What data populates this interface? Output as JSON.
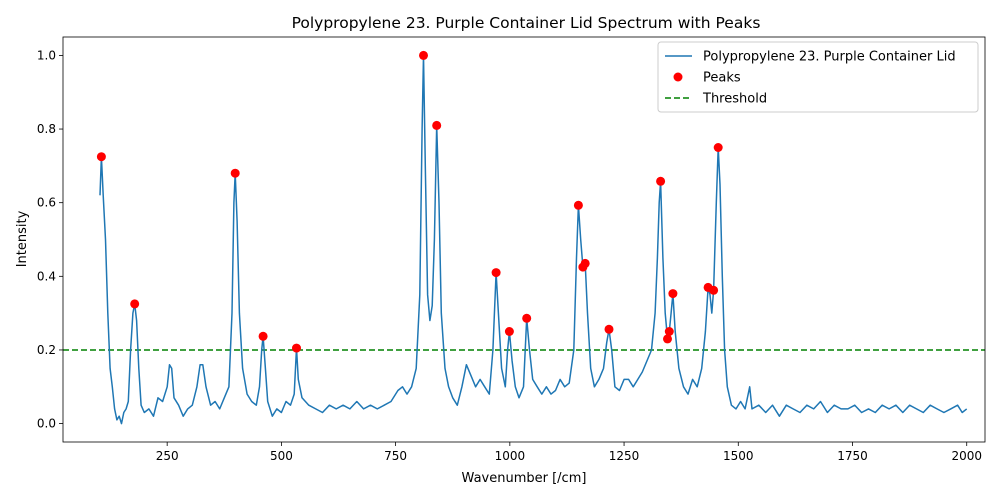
{
  "chart_data": {
    "type": "line",
    "title": "Polypropylene 23. Purple Container Lid Spectrum with Peaks",
    "xlabel": "Wavenumber [/cm]",
    "ylabel": "Intensity",
    "xlim": [
      22,
      2040
    ],
    "ylim": [
      -0.05,
      1.05
    ],
    "x_ticks": [
      250,
      500,
      750,
      1000,
      1250,
      1500,
      1750,
      2000
    ],
    "y_ticks": [
      0.0,
      0.2,
      0.4,
      0.6,
      0.8,
      1.0
    ],
    "grid": false,
    "legend_position": "top-right",
    "legend": [
      {
        "label": "Polypropylene 23. Purple Container Lid",
        "kind": "line",
        "color": "#1f77b4"
      },
      {
        "label": "Peaks",
        "kind": "marker",
        "color": "#ff0000"
      },
      {
        "label": "Threshold",
        "kind": "dashed",
        "color": "#008000"
      }
    ],
    "series": [
      {
        "name": "Polypropylene 23. Purple Container Lid",
        "color": "#1f77b4",
        "points": [
          [
            103,
            0.62
          ],
          [
            106,
            0.725
          ],
          [
            110,
            0.62
          ],
          [
            115,
            0.5
          ],
          [
            120,
            0.3
          ],
          [
            125,
            0.15
          ],
          [
            130,
            0.1
          ],
          [
            135,
            0.04
          ],
          [
            140,
            0.01
          ],
          [
            145,
            0.02
          ],
          [
            150,
            0.0
          ],
          [
            155,
            0.03
          ],
          [
            160,
            0.04
          ],
          [
            165,
            0.06
          ],
          [
            170,
            0.2
          ],
          [
            175,
            0.3
          ],
          [
            179,
            0.325
          ],
          [
            183,
            0.28
          ],
          [
            188,
            0.15
          ],
          [
            193,
            0.05
          ],
          [
            200,
            0.03
          ],
          [
            210,
            0.04
          ],
          [
            220,
            0.02
          ],
          [
            230,
            0.07
          ],
          [
            240,
            0.06
          ],
          [
            250,
            0.1
          ],
          [
            255,
            0.16
          ],
          [
            260,
            0.15
          ],
          [
            265,
            0.07
          ],
          [
            275,
            0.05
          ],
          [
            285,
            0.02
          ],
          [
            295,
            0.04
          ],
          [
            305,
            0.05
          ],
          [
            315,
            0.1
          ],
          [
            322,
            0.16
          ],
          [
            328,
            0.16
          ],
          [
            335,
            0.1
          ],
          [
            345,
            0.05
          ],
          [
            355,
            0.06
          ],
          [
            365,
            0.04
          ],
          [
            375,
            0.07
          ],
          [
            385,
            0.1
          ],
          [
            392,
            0.3
          ],
          [
            396,
            0.6
          ],
          [
            399,
            0.68
          ],
          [
            403,
            0.55
          ],
          [
            408,
            0.3
          ],
          [
            415,
            0.15
          ],
          [
            425,
            0.08
          ],
          [
            435,
            0.06
          ],
          [
            445,
            0.05
          ],
          [
            452,
            0.1
          ],
          [
            457,
            0.2
          ],
          [
            460,
            0.237
          ],
          [
            465,
            0.15
          ],
          [
            470,
            0.06
          ],
          [
            480,
            0.02
          ],
          [
            490,
            0.04
          ],
          [
            500,
            0.03
          ],
          [
            510,
            0.06
          ],
          [
            520,
            0.05
          ],
          [
            528,
            0.08
          ],
          [
            533,
            0.205
          ],
          [
            537,
            0.12
          ],
          [
            545,
            0.07
          ],
          [
            560,
            0.05
          ],
          [
            575,
            0.04
          ],
          [
            590,
            0.03
          ],
          [
            605,
            0.05
          ],
          [
            620,
            0.04
          ],
          [
            635,
            0.05
          ],
          [
            650,
            0.04
          ],
          [
            665,
            0.06
          ],
          [
            680,
            0.04
          ],
          [
            695,
            0.05
          ],
          [
            710,
            0.04
          ],
          [
            725,
            0.05
          ],
          [
            740,
            0.06
          ],
          [
            755,
            0.09
          ],
          [
            765,
            0.1
          ],
          [
            775,
            0.08
          ],
          [
            785,
            0.1
          ],
          [
            795,
            0.15
          ],
          [
            803,
            0.35
          ],
          [
            808,
            0.8
          ],
          [
            811,
            1.0
          ],
          [
            815,
            0.7
          ],
          [
            820,
            0.35
          ],
          [
            825,
            0.28
          ],
          [
            830,
            0.32
          ],
          [
            835,
            0.5
          ],
          [
            840,
            0.81
          ],
          [
            845,
            0.6
          ],
          [
            850,
            0.3
          ],
          [
            858,
            0.15
          ],
          [
            866,
            0.1
          ],
          [
            875,
            0.07
          ],
          [
            885,
            0.05
          ],
          [
            895,
            0.1
          ],
          [
            905,
            0.16
          ],
          [
            915,
            0.13
          ],
          [
            925,
            0.1
          ],
          [
            935,
            0.12
          ],
          [
            945,
            0.1
          ],
          [
            955,
            0.08
          ],
          [
            963,
            0.2
          ],
          [
            970,
            0.41
          ],
          [
            975,
            0.3
          ],
          [
            982,
            0.15
          ],
          [
            990,
            0.1
          ],
          [
            995,
            0.2
          ],
          [
            999,
            0.25
          ],
          [
            1005,
            0.17
          ],
          [
            1012,
            0.1
          ],
          [
            1020,
            0.07
          ],
          [
            1030,
            0.1
          ],
          [
            1037,
            0.286
          ],
          [
            1043,
            0.2
          ],
          [
            1050,
            0.12
          ],
          [
            1060,
            0.1
          ],
          [
            1070,
            0.08
          ],
          [
            1080,
            0.1
          ],
          [
            1090,
            0.08
          ],
          [
            1100,
            0.09
          ],
          [
            1110,
            0.12
          ],
          [
            1120,
            0.1
          ],
          [
            1130,
            0.11
          ],
          [
            1140,
            0.2
          ],
          [
            1146,
            0.45
          ],
          [
            1150,
            0.593
          ],
          [
            1155,
            0.5
          ],
          [
            1160,
            0.425
          ],
          [
            1165,
            0.435
          ],
          [
            1170,
            0.3
          ],
          [
            1177,
            0.15
          ],
          [
            1185,
            0.1
          ],
          [
            1195,
            0.12
          ],
          [
            1205,
            0.15
          ],
          [
            1212,
            0.22
          ],
          [
            1217,
            0.256
          ],
          [
            1223,
            0.2
          ],
          [
            1230,
            0.1
          ],
          [
            1240,
            0.09
          ],
          [
            1250,
            0.12
          ],
          [
            1260,
            0.12
          ],
          [
            1270,
            0.1
          ],
          [
            1280,
            0.12
          ],
          [
            1290,
            0.14
          ],
          [
            1300,
            0.17
          ],
          [
            1310,
            0.2
          ],
          [
            1318,
            0.3
          ],
          [
            1323,
            0.45
          ],
          [
            1327,
            0.6
          ],
          [
            1330,
            0.658
          ],
          [
            1335,
            0.45
          ],
          [
            1340,
            0.3
          ],
          [
            1345,
            0.23
          ],
          [
            1349,
            0.25
          ],
          [
            1353,
            0.3
          ],
          [
            1357,
            0.353
          ],
          [
            1362,
            0.25
          ],
          [
            1370,
            0.15
          ],
          [
            1380,
            0.1
          ],
          [
            1390,
            0.08
          ],
          [
            1400,
            0.12
          ],
          [
            1410,
            0.1
          ],
          [
            1420,
            0.15
          ],
          [
            1428,
            0.25
          ],
          [
            1434,
            0.37
          ],
          [
            1438,
            0.35
          ],
          [
            1442,
            0.3
          ],
          [
            1446,
            0.362
          ],
          [
            1452,
            0.6
          ],
          [
            1456,
            0.75
          ],
          [
            1460,
            0.65
          ],
          [
            1465,
            0.4
          ],
          [
            1470,
            0.2
          ],
          [
            1476,
            0.1
          ],
          [
            1485,
            0.05
          ],
          [
            1495,
            0.04
          ],
          [
            1505,
            0.06
          ],
          [
            1515,
            0.04
          ],
          [
            1525,
            0.1
          ],
          [
            1530,
            0.04
          ],
          [
            1545,
            0.05
          ],
          [
            1560,
            0.03
          ],
          [
            1575,
            0.05
          ],
          [
            1590,
            0.02
          ],
          [
            1605,
            0.05
          ],
          [
            1620,
            0.04
          ],
          [
            1635,
            0.03
          ],
          [
            1650,
            0.05
          ],
          [
            1665,
            0.04
          ],
          [
            1680,
            0.06
          ],
          [
            1695,
            0.03
          ],
          [
            1710,
            0.05
          ],
          [
            1725,
            0.04
          ],
          [
            1740,
            0.04
          ],
          [
            1755,
            0.05
          ],
          [
            1770,
            0.03
          ],
          [
            1785,
            0.04
          ],
          [
            1800,
            0.03
          ],
          [
            1815,
            0.05
          ],
          [
            1830,
            0.04
          ],
          [
            1845,
            0.05
          ],
          [
            1860,
            0.03
          ],
          [
            1875,
            0.05
          ],
          [
            1890,
            0.04
          ],
          [
            1905,
            0.03
          ],
          [
            1920,
            0.05
          ],
          [
            1935,
            0.04
          ],
          [
            1950,
            0.03
          ],
          [
            1965,
            0.04
          ],
          [
            1980,
            0.05
          ],
          [
            1990,
            0.03
          ],
          [
            2000,
            0.04
          ]
        ]
      },
      {
        "name": "Peaks",
        "color": "#ff0000",
        "points": [
          [
            106,
            0.725
          ],
          [
            179,
            0.325
          ],
          [
            399,
            0.68
          ],
          [
            460,
            0.237
          ],
          [
            533,
            0.205
          ],
          [
            811,
            1.0
          ],
          [
            840,
            0.81
          ],
          [
            970,
            0.41
          ],
          [
            999,
            0.25
          ],
          [
            1037,
            0.286
          ],
          [
            1150,
            0.593
          ],
          [
            1160,
            0.425
          ],
          [
            1165,
            0.435
          ],
          [
            1217,
            0.256
          ],
          [
            1330,
            0.658
          ],
          [
            1345,
            0.23
          ],
          [
            1349,
            0.25
          ],
          [
            1357,
            0.353
          ],
          [
            1434,
            0.37
          ],
          [
            1446,
            0.362
          ],
          [
            1456,
            0.75
          ]
        ]
      },
      {
        "name": "Threshold",
        "color": "#008000",
        "y": 0.2
      }
    ]
  }
}
